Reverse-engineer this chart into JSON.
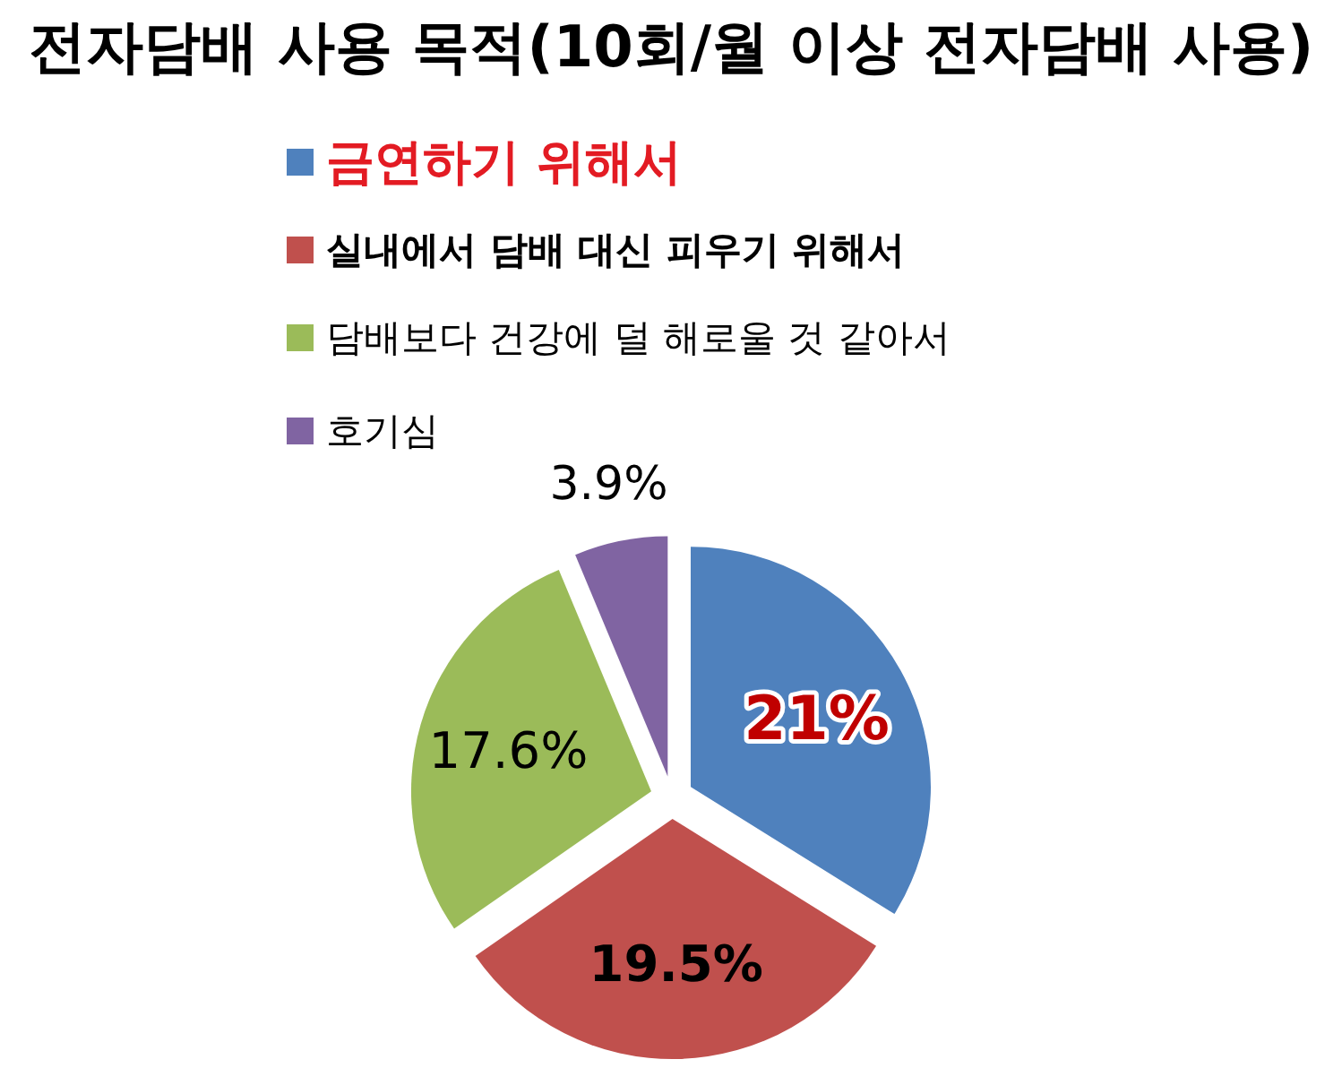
{
  "chart_data": {
    "type": "pie",
    "title": "전자담배 사용 목적(10회/월 이상 전자담배 사용)",
    "categories": [
      "금연하기 위해서",
      "실내에서 담배 대신 피우기 위해서",
      "담배보다 건강에 덜 해로울 것 같아서",
      "호기심"
    ],
    "values": [
      21,
      19.5,
      17.6,
      3.9
    ],
    "colors": [
      "#4f81bd",
      "#c0504d",
      "#9bbb59",
      "#8064a2"
    ],
    "value_labels": [
      "21%",
      "19.5%",
      "17.6%",
      "3.9%"
    ],
    "legend": "top"
  }
}
